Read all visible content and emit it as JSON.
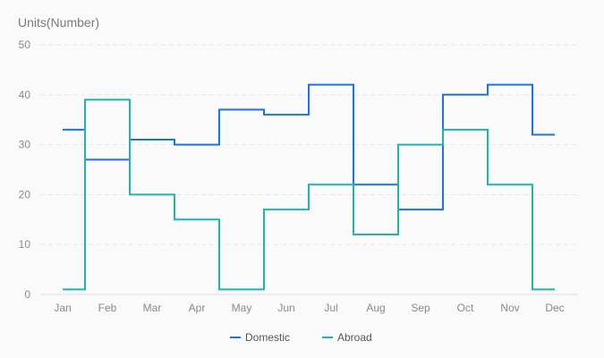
{
  "chart_data": {
    "type": "line",
    "step": "middle",
    "ylabel": "Units(Number)",
    "ylim": [
      0,
      50
    ],
    "yticks": [
      0,
      10,
      20,
      30,
      40,
      50
    ],
    "categories": [
      "Jan",
      "Feb",
      "Mar",
      "Apr",
      "May",
      "Jun",
      "Jul",
      "Aug",
      "Sep",
      "Oct",
      "Nov",
      "Dec"
    ],
    "grid": true,
    "legend_position": "bottom",
    "series": [
      {
        "name": "Domestic",
        "color": "#1a73e8",
        "values": [
          33,
          27,
          31,
          30,
          37,
          36,
          42,
          22,
          17,
          40,
          42,
          32
        ]
      },
      {
        "name": "Abroad",
        "color": "#1fb5ad",
        "values": [
          1,
          39,
          20,
          15,
          1,
          17,
          22,
          12,
          30,
          33,
          22,
          1
        ]
      }
    ]
  }
}
